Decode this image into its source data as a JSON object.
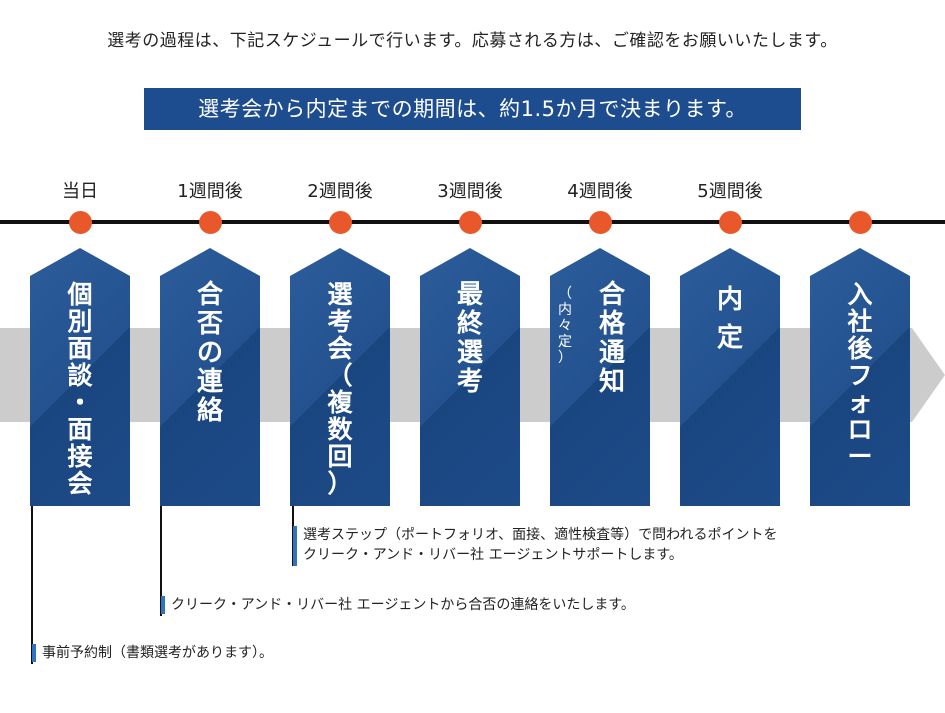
{
  "intro": "選考の過程は、下記スケジュールで行います。応募される方は、ご確認をお願いいたします。",
  "banner": "選考会から内定までの期間は、約1.5か月で決まります。",
  "steps": [
    {
      "timing": "当日",
      "title": "個\n別\n面\n談\n・\n面\n接\n会",
      "sub": ""
    },
    {
      "timing": "1週間後",
      "title": "合\n否\nの\n連\n絡",
      "sub": ""
    },
    {
      "timing": "2週間後",
      "title": "選\n考\n会\n（\n複\n数\n回\n）",
      "sub": ""
    },
    {
      "timing": "3週間後",
      "title": "最\n終\n選\n考",
      "sub": ""
    },
    {
      "timing": "4週間後",
      "title": "合\n格\n通\n知",
      "sub": "（\n内\n々\n定\n）"
    },
    {
      "timing": "5週間後",
      "title": "内\n定",
      "sub": ""
    },
    {
      "timing": "",
      "title": "入\n社\n後\nフ\nォ\nロ\nー",
      "sub": ""
    }
  ],
  "notes": [
    "選考ステップ（ポートフォリオ、面接、適性検査等）で問われるポイントを\nクリーク・アンド・リバー社 エージェントサポートします。",
    "クリーク・アンド・リバー社 エージェントから合否の連絡をいたします。",
    "事前予約制（書類選考があります）。"
  ],
  "colors": {
    "navy": "#1d4d8f",
    "accent_dot": "#e8582a",
    "note_bar": "#2f74c0",
    "arrow": "#cccccc"
  }
}
